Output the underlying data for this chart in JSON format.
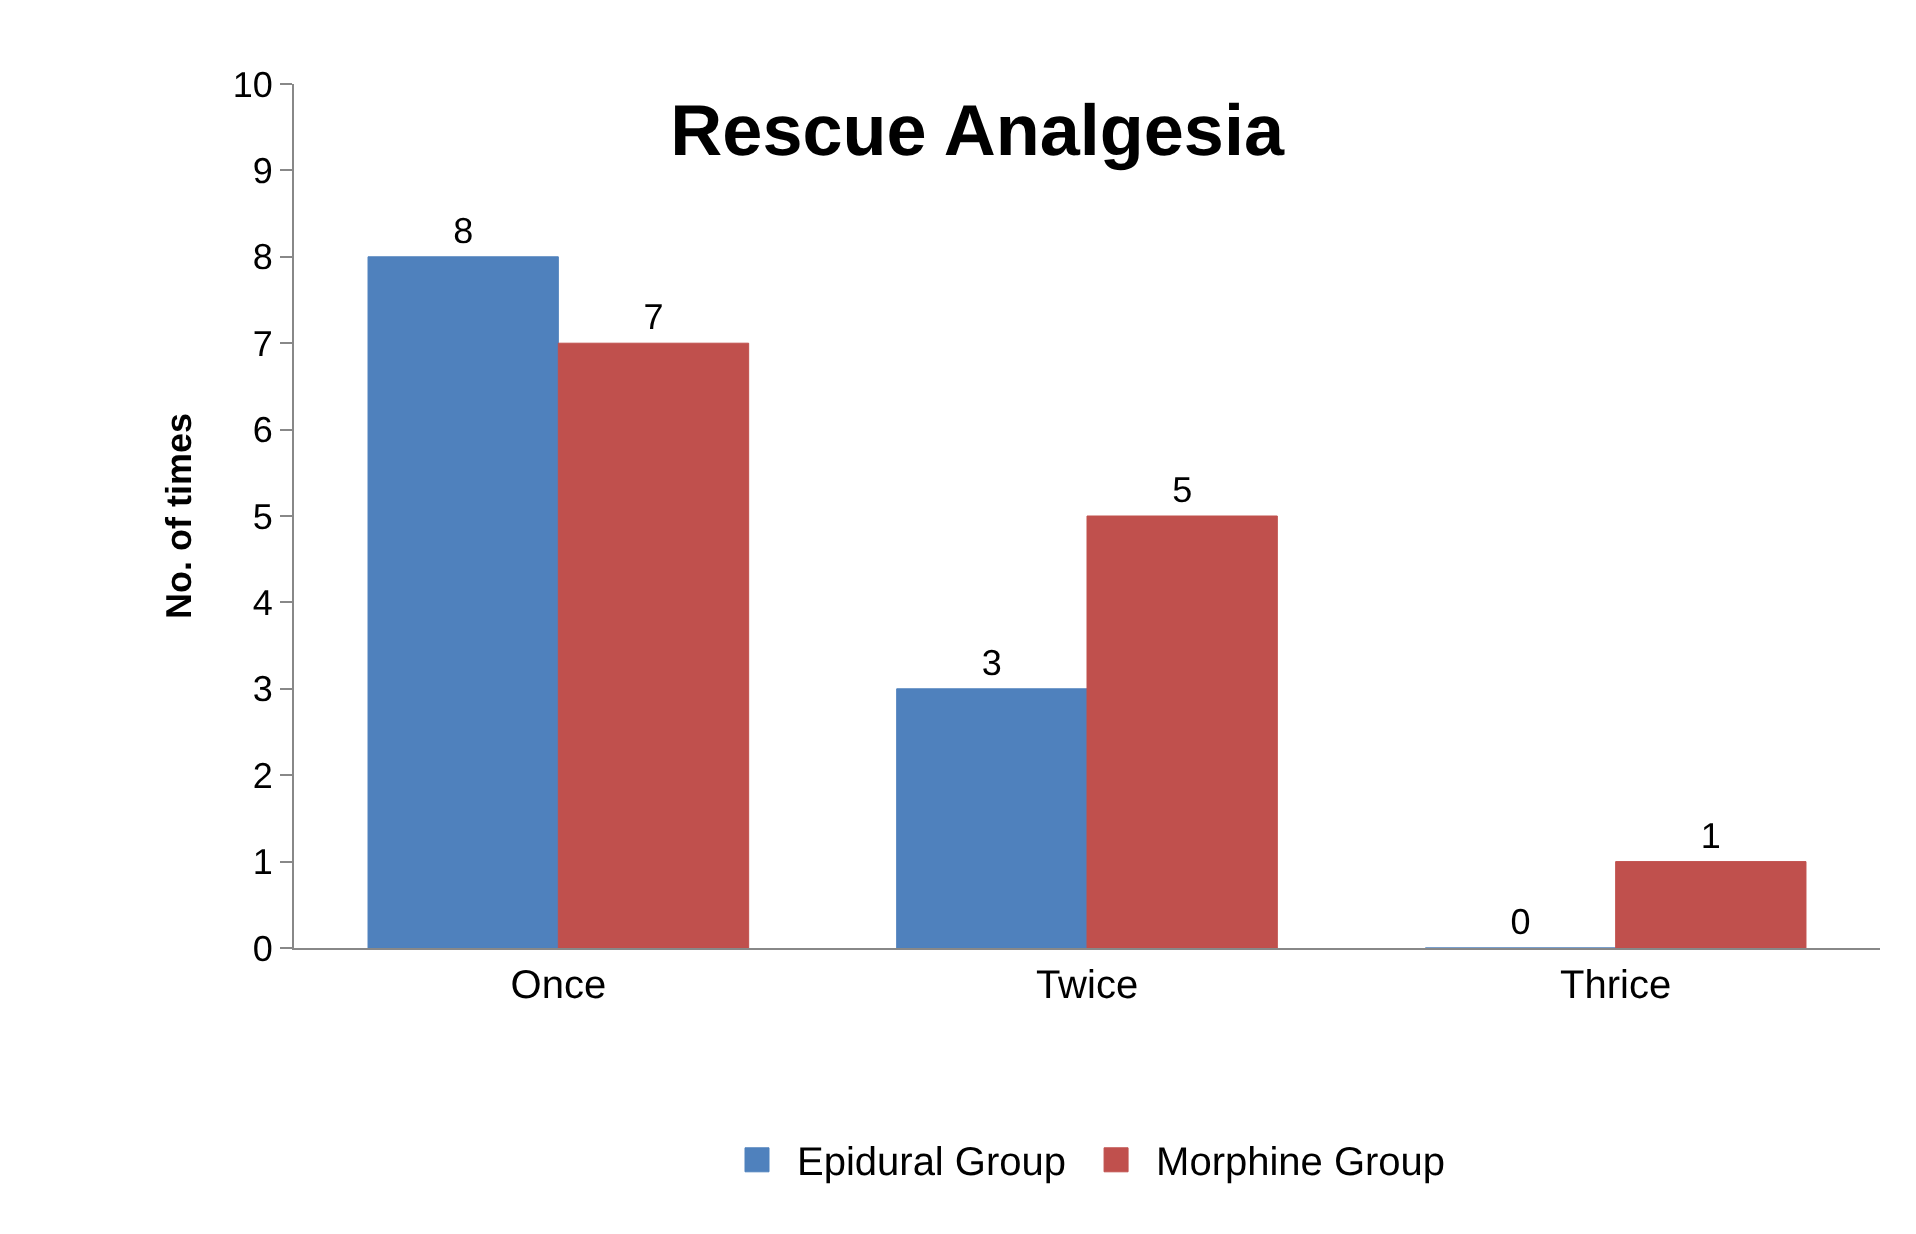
{
  "chart_data": {
    "type": "bar",
    "title": "Rescue Analgesia",
    "ylabel": "No. of times",
    "categories": [
      "Once",
      "Twice",
      "Thrice"
    ],
    "series": [
      {
        "name": "Epidural Group",
        "color": "#4f81bd",
        "values": [
          8,
          3,
          0
        ]
      },
      {
        "name": "Morphine Group",
        "color": "#c0504d",
        "values": [
          7,
          5,
          1
        ]
      }
    ],
    "ylim": [
      0,
      10
    ],
    "yticks": [
      0,
      1,
      2,
      3,
      4,
      5,
      6,
      7,
      8,
      9,
      10
    ],
    "legend": "bottom",
    "data_labels": true
  }
}
